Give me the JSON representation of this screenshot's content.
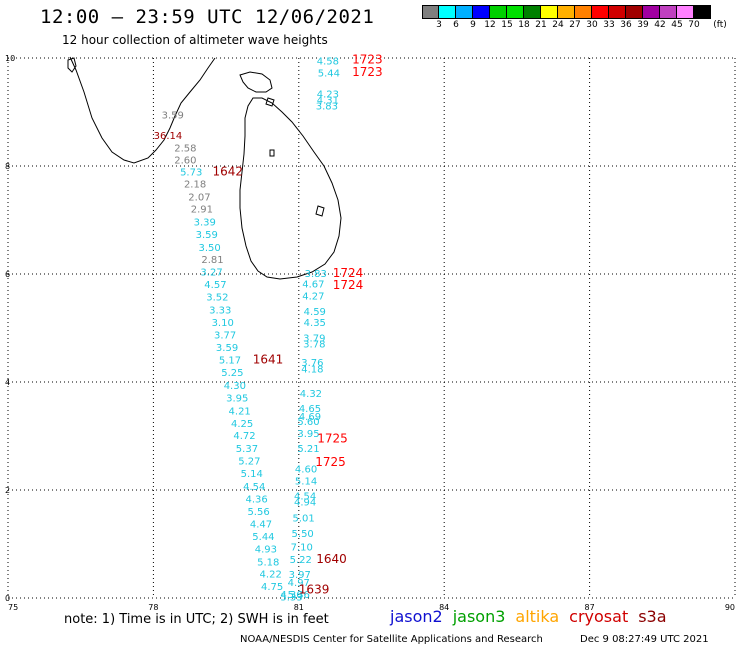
{
  "header": {
    "title": "12:00 – 23:59 UTC 12/06/2021",
    "subtitle": "12 hour collection of altimeter wave heights"
  },
  "legend": {
    "colors": [
      "#7f7f7f",
      "#00ffff",
      "#00b0ff",
      "#0000ff",
      "#00d000",
      "#00e000",
      "#008000",
      "#ffff00",
      "#ffb000",
      "#ff8000",
      "#ff0000",
      "#d00000",
      "#a00000",
      "#a000a0",
      "#c040c0",
      "#ff80ff",
      "#000000"
    ],
    "ticks": [
      "3",
      "6",
      "9",
      "12",
      "15",
      "18",
      "21",
      "24",
      "27",
      "30",
      "33",
      "36",
      "39",
      "42",
      "45",
      "70"
    ],
    "unit": "(ft)"
  },
  "map": {
    "lon_range": [
      75,
      90
    ],
    "lat_range": [
      0,
      10
    ],
    "x_ticks": [
      "75",
      "78",
      "81",
      "84",
      "87",
      "90"
    ],
    "y_ticks": [
      "0",
      "2",
      "4",
      "6",
      "8",
      "10"
    ],
    "observations": [
      {
        "lon": 81.6,
        "lat": 9.88,
        "v": "4.58",
        "c": "#20c8e0"
      },
      {
        "lon": 81.62,
        "lat": 9.66,
        "v": "5.44",
        "c": "#20c8e0"
      },
      {
        "lon": 81.6,
        "lat": 9.27,
        "v": "4.23",
        "c": "#20c8e0"
      },
      {
        "lon": 81.6,
        "lat": 9.16,
        "v": "4.31",
        "c": "#20c8e0"
      },
      {
        "lon": 81.58,
        "lat": 9.05,
        "v": "3.83",
        "c": "#20c8e0"
      },
      {
        "lon": 78.4,
        "lat": 8.88,
        "v": "3.59",
        "c": "#7f7f7f"
      },
      {
        "lon": 78.3,
        "lat": 8.5,
        "v": "36.14",
        "c": "#a00000"
      },
      {
        "lon": 78.66,
        "lat": 8.27,
        "v": "2.58",
        "c": "#7f7f7f"
      },
      {
        "lon": 78.66,
        "lat": 8.05,
        "v": "2.60",
        "c": "#7f7f7f"
      },
      {
        "lon": 78.78,
        "lat": 7.82,
        "v": "5.73",
        "c": "#20c8e0"
      },
      {
        "lon": 78.86,
        "lat": 7.6,
        "v": "2.18",
        "c": "#7f7f7f"
      },
      {
        "lon": 78.95,
        "lat": 7.36,
        "v": "2.07",
        "c": "#7f7f7f"
      },
      {
        "lon": 79.0,
        "lat": 7.14,
        "v": "2.91",
        "c": "#7f7f7f"
      },
      {
        "lon": 79.06,
        "lat": 6.9,
        "v": "3.39",
        "c": "#20c8e0"
      },
      {
        "lon": 79.1,
        "lat": 6.67,
        "v": "3.59",
        "c": "#20c8e0"
      },
      {
        "lon": 79.16,
        "lat": 6.43,
        "v": "3.50",
        "c": "#20c8e0"
      },
      {
        "lon": 79.22,
        "lat": 6.2,
        "v": "2.81",
        "c": "#7f7f7f"
      },
      {
        "lon": 79.2,
        "lat": 5.97,
        "v": "3.27",
        "c": "#20c8e0"
      },
      {
        "lon": 79.28,
        "lat": 5.74,
        "v": "4.57",
        "c": "#20c8e0"
      },
      {
        "lon": 79.32,
        "lat": 5.51,
        "v": "3.52",
        "c": "#20c8e0"
      },
      {
        "lon": 79.38,
        "lat": 5.27,
        "v": "3.33",
        "c": "#20c8e0"
      },
      {
        "lon": 79.43,
        "lat": 5.04,
        "v": "3.10",
        "c": "#20c8e0"
      },
      {
        "lon": 79.48,
        "lat": 4.81,
        "v": "3.77",
        "c": "#20c8e0"
      },
      {
        "lon": 79.52,
        "lat": 4.57,
        "v": "3.59",
        "c": "#20c8e0"
      },
      {
        "lon": 79.58,
        "lat": 4.34,
        "v": "5.17",
        "c": "#20c8e0"
      },
      {
        "lon": 79.63,
        "lat": 4.11,
        "v": "5.25",
        "c": "#20c8e0"
      },
      {
        "lon": 79.68,
        "lat": 3.87,
        "v": "4.30",
        "c": "#20c8e0"
      },
      {
        "lon": 79.73,
        "lat": 3.64,
        "v": "3.95",
        "c": "#20c8e0"
      },
      {
        "lon": 79.78,
        "lat": 3.4,
        "v": "4.21",
        "c": "#20c8e0"
      },
      {
        "lon": 79.83,
        "lat": 3.17,
        "v": "4.25",
        "c": "#20c8e0"
      },
      {
        "lon": 79.88,
        "lat": 2.94,
        "v": "4.72",
        "c": "#20c8e0"
      },
      {
        "lon": 79.93,
        "lat": 2.7,
        "v": "5.37",
        "c": "#20c8e0"
      },
      {
        "lon": 79.98,
        "lat": 2.47,
        "v": "5.27",
        "c": "#20c8e0"
      },
      {
        "lon": 80.03,
        "lat": 2.24,
        "v": "5.14",
        "c": "#20c8e0"
      },
      {
        "lon": 80.08,
        "lat": 2.0,
        "v": "4.54",
        "c": "#20c8e0"
      },
      {
        "lon": 80.13,
        "lat": 1.77,
        "v": "4.36",
        "c": "#20c8e0"
      },
      {
        "lon": 80.17,
        "lat": 1.54,
        "v": "5.56",
        "c": "#20c8e0"
      },
      {
        "lon": 80.22,
        "lat": 1.31,
        "v": "4.47",
        "c": "#20c8e0"
      },
      {
        "lon": 80.27,
        "lat": 1.07,
        "v": "5.44",
        "c": "#20c8e0"
      },
      {
        "lon": 80.32,
        "lat": 0.84,
        "v": "4.93",
        "c": "#20c8e0"
      },
      {
        "lon": 80.37,
        "lat": 0.6,
        "v": "5.18",
        "c": "#20c8e0"
      },
      {
        "lon": 80.42,
        "lat": 0.38,
        "v": "4.22",
        "c": "#20c8e0"
      },
      {
        "lon": 80.45,
        "lat": 0.15,
        "v": "4.75",
        "c": "#20c8e0"
      },
      {
        "lon": 81.35,
        "lat": 5.94,
        "v": "3.83",
        "c": "#20c8e0"
      },
      {
        "lon": 81.3,
        "lat": 5.75,
        "v": "4.67",
        "c": "#20c8e0"
      },
      {
        "lon": 81.3,
        "lat": 5.53,
        "v": "4.27",
        "c": "#20c8e0"
      },
      {
        "lon": 81.33,
        "lat": 5.24,
        "v": "4.59",
        "c": "#20c8e0"
      },
      {
        "lon": 81.33,
        "lat": 5.04,
        "v": "4.35",
        "c": "#20c8e0"
      },
      {
        "lon": 81.32,
        "lat": 4.75,
        "v": "3.79",
        "c": "#20c8e0"
      },
      {
        "lon": 81.32,
        "lat": 4.64,
        "v": "3.78",
        "c": "#20c8e0"
      },
      {
        "lon": 81.28,
        "lat": 4.3,
        "v": "3.76",
        "c": "#20c8e0"
      },
      {
        "lon": 81.28,
        "lat": 4.18,
        "v": "4.18",
        "c": "#20c8e0"
      },
      {
        "lon": 81.25,
        "lat": 3.72,
        "v": "4.32",
        "c": "#20c8e0"
      },
      {
        "lon": 81.23,
        "lat": 3.44,
        "v": "4.65",
        "c": "#20c8e0"
      },
      {
        "lon": 81.23,
        "lat": 3.3,
        "v": "4.69",
        "c": "#20c8e0"
      },
      {
        "lon": 81.2,
        "lat": 3.2,
        "v": "5.60",
        "c": "#20c8e0"
      },
      {
        "lon": 81.2,
        "lat": 2.98,
        "v": "3.95",
        "c": "#20c8e0"
      },
      {
        "lon": 81.2,
        "lat": 2.7,
        "v": "5.21",
        "c": "#20c8e0"
      },
      {
        "lon": 81.15,
        "lat": 2.32,
        "v": "4.60",
        "c": "#20c8e0"
      },
      {
        "lon": 81.15,
        "lat": 2.1,
        "v": "5.14",
        "c": "#20c8e0"
      },
      {
        "lon": 81.13,
        "lat": 1.82,
        "v": "4.54",
        "c": "#20c8e0"
      },
      {
        "lon": 81.13,
        "lat": 1.71,
        "v": "4.94",
        "c": "#20c8e0"
      },
      {
        "lon": 81.1,
        "lat": 1.42,
        "v": "5.01",
        "c": "#20c8e0"
      },
      {
        "lon": 81.08,
        "lat": 1.13,
        "v": "5.50",
        "c": "#20c8e0"
      },
      {
        "lon": 81.06,
        "lat": 0.88,
        "v": "7.10",
        "c": "#20c8e0"
      },
      {
        "lon": 81.04,
        "lat": 0.65,
        "v": "5.22",
        "c": "#20c8e0"
      },
      {
        "lon": 81.02,
        "lat": 0.37,
        "v": "3.97",
        "c": "#20c8e0"
      },
      {
        "lon": 81.0,
        "lat": 0.22,
        "v": "4.97",
        "c": "#20c8e0"
      },
      {
        "lon": 81.0,
        "lat": 0.0,
        "v": "5.36",
        "c": "#20c8e0"
      },
      {
        "lon": 80.85,
        "lat": 0.0,
        "v": "4.36",
        "c": "#20c8e0"
      },
      {
        "lon": 80.85,
        "lat": -0.05,
        "v": "5.33",
        "c": "#20c8e0"
      }
    ],
    "pass_times": [
      {
        "lon": 82.1,
        "lat": 9.9,
        "t": "1723",
        "c": "#ff0000"
      },
      {
        "lon": 82.1,
        "lat": 9.67,
        "t": "1723",
        "c": "#ff0000"
      },
      {
        "lon": 79.22,
        "lat": 7.82,
        "t": "1642",
        "c": "#a00000"
      },
      {
        "lon": 81.7,
        "lat": 5.94,
        "t": "1724",
        "c": "#ff0000"
      },
      {
        "lon": 81.7,
        "lat": 5.72,
        "t": "1724",
        "c": "#ff0000"
      },
      {
        "lon": 80.05,
        "lat": 4.34,
        "t": "1641",
        "c": "#a00000"
      },
      {
        "lon": 81.38,
        "lat": 2.88,
        "t": "1725",
        "c": "#ff0000"
      },
      {
        "lon": 81.34,
        "lat": 2.44,
        "t": "1725",
        "c": "#ff0000"
      },
      {
        "lon": 81.36,
        "lat": 0.65,
        "t": "1640",
        "c": "#a00000"
      },
      {
        "lon": 81.0,
        "lat": 0.08,
        "t": "1639",
        "c": "#a00000"
      }
    ]
  },
  "footer": {
    "note": "note: 1) Time is in UTC; 2) SWH is in feet",
    "satellites": [
      {
        "name": "jason2",
        "color": "#1010d0"
      },
      {
        "name": "jason3",
        "color": "#00a000"
      },
      {
        "name": "altika",
        "color": "#ffa500"
      },
      {
        "name": "cryosat",
        "color": "#d00000"
      },
      {
        "name": "s3a",
        "color": "#8b0000"
      }
    ],
    "credit": "NOAA/NESDIS Center for Satellite Applications and Research",
    "timestamp": "Dec  9 08:27:49 UTC 2021"
  }
}
